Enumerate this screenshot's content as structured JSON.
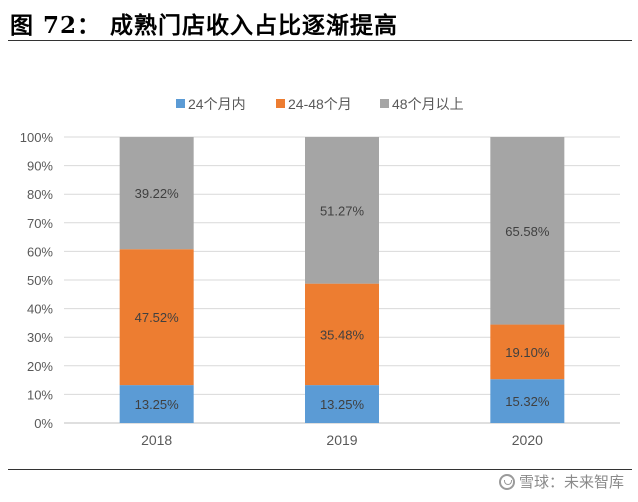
{
  "figure_title": "图 72： 成熟门店收入占比逐渐提高",
  "watermark": {
    "text": "雪球：未来智库",
    "icon": "snowball-logo-icon"
  },
  "colors": {
    "under24": "#5B9BD5",
    "m24to48": "#ED7D31",
    "over48": "#A5A5A5",
    "grid": "#d9d9d9"
  },
  "chart_data": {
    "type": "bar",
    "stacked": true,
    "categories": [
      "2018",
      "2019",
      "2020"
    ],
    "series": [
      {
        "name": "24个月内",
        "values": [
          13.25,
          13.25,
          15.32
        ],
        "labels": [
          "13.25%",
          "13.25%",
          "15.32%"
        ]
      },
      {
        "name": "24-48个月",
        "values": [
          47.52,
          35.48,
          19.1
        ],
        "labels": [
          "47.52%",
          "35.48%",
          "19.10%"
        ]
      },
      {
        "name": "48个月以上",
        "values": [
          39.22,
          51.27,
          65.58
        ],
        "labels": [
          "39.22%",
          "51.27%",
          "65.58%"
        ]
      }
    ],
    "ylim": [
      0,
      100
    ],
    "yticks": [
      "0%",
      "10%",
      "20%",
      "30%",
      "40%",
      "50%",
      "60%",
      "70%",
      "80%",
      "90%",
      "100%"
    ],
    "grid": true,
    "legend_position": "top-center"
  }
}
